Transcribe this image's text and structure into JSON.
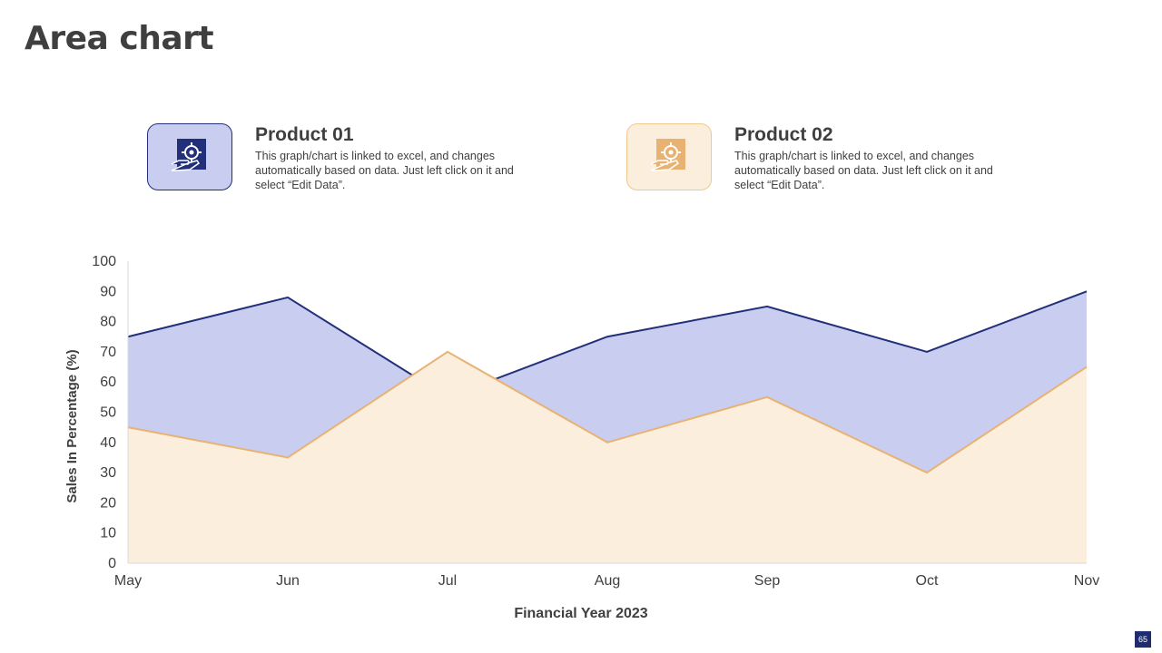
{
  "title": "Area chart",
  "products": [
    {
      "name": "Product 01",
      "description": "This graph/chart is linked to excel, and changes automatically based on data. Just left click on it and select “Edit Data”.",
      "icon": "hand-gear-icon"
    },
    {
      "name": "Product 02",
      "description": "This graph/chart is linked to excel, and changes automatically based on data. Just left click on it and select “Edit Data”.",
      "icon": "hand-gear-icon"
    }
  ],
  "page_number": "65",
  "colors": {
    "series1_fill": "#c9cdf0",
    "series1_line": "#22307a",
    "series2_fill": "#fbeedd",
    "series2_line": "#e8b273",
    "axis": "#d9d9d9",
    "text": "#404040"
  },
  "chart_data": {
    "type": "area",
    "categories": [
      "May",
      "Jun",
      "Jul",
      "Aug",
      "Sep",
      "Oct",
      "Nov"
    ],
    "series": [
      {
        "values": [
          75,
          88,
          55,
          75,
          85,
          70,
          90
        ]
      },
      {
        "values": [
          45,
          35,
          70,
          40,
          55,
          30,
          65
        ]
      }
    ],
    "xlabel": "Financial Year 2023",
    "ylabel": "Sales In Percentage (%)",
    "ylim": [
      0,
      100
    ],
    "yticks": [
      0,
      10,
      20,
      30,
      40,
      50,
      60,
      70,
      80,
      90,
      100
    ],
    "grid": false,
    "legend": "none"
  }
}
